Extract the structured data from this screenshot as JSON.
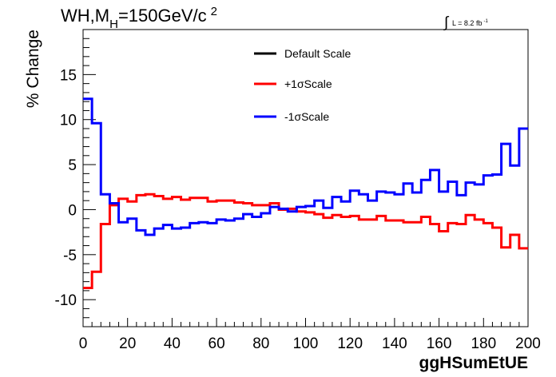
{
  "chart_data": {
    "type": "line",
    "title": {
      "main": "WH,M",
      "sub": "H",
      "rest": "=150GeV/c",
      "sup": "2"
    },
    "lumi": {
      "integral_sign": "∫",
      "text": "L = 8.2 fb",
      "sup": "-1"
    },
    "xlabel": "ggHSumEtUE",
    "ylabel": "% Change",
    "xlim": [
      0,
      200
    ],
    "ylim": [
      -13,
      20
    ],
    "x_ticks": [
      0,
      20,
      40,
      60,
      80,
      100,
      120,
      140,
      160,
      180,
      200
    ],
    "y_ticks": [
      -10,
      -5,
      0,
      5,
      10,
      15
    ],
    "x_tick_labels": [
      "0",
      "20",
      "40",
      "60",
      "80",
      "100",
      "120",
      "140",
      "160",
      "180",
      "200"
    ],
    "y_tick_labels": [
      "-10",
      "-5",
      "0",
      "5",
      "10",
      "15"
    ],
    "bin_edges": [
      0,
      4,
      8,
      12,
      16,
      20,
      24,
      28,
      32,
      36,
      40,
      44,
      48,
      52,
      56,
      60,
      64,
      68,
      72,
      76,
      80,
      84,
      88,
      92,
      96,
      100,
      104,
      108,
      112,
      116,
      120,
      124,
      128,
      132,
      136,
      140,
      144,
      148,
      152,
      156,
      160,
      164,
      168,
      172,
      176,
      180,
      184,
      188,
      192,
      196,
      200
    ],
    "series": [
      {
        "name": "Default Scale",
        "color": "#000000",
        "values": []
      },
      {
        "name": "+1σScale",
        "color": "#ff0000",
        "values": [
          -8.7,
          -6.9,
          -1.6,
          0.5,
          1.2,
          0.9,
          1.6,
          1.7,
          1.5,
          1.2,
          1.4,
          1.1,
          1.3,
          1.3,
          0.9,
          1.0,
          1.0,
          0.8,
          0.7,
          0.5,
          0.5,
          0.7,
          0.0,
          0.1,
          -0.2,
          -0.3,
          -0.5,
          -0.9,
          -0.6,
          -0.8,
          -0.7,
          -1.1,
          -1.1,
          -0.7,
          -1.2,
          -1.2,
          -1.4,
          -1.4,
          -0.8,
          -1.6,
          -2.4,
          -1.5,
          -1.6,
          -0.6,
          -1.1,
          -1.5,
          -2.0,
          -4.2,
          -2.8,
          -4.3
        ]
      },
      {
        "name": "-1σScale",
        "color": "#0000ff",
        "values": [
          12.3,
          9.6,
          1.7,
          0.7,
          -1.4,
          -1.0,
          -2.3,
          -2.8,
          -2.1,
          -1.7,
          -2.1,
          -2.0,
          -1.5,
          -1.4,
          -1.5,
          -1.1,
          -1.2,
          -1.0,
          -0.5,
          -0.8,
          -0.4,
          0.3,
          0.1,
          -0.2,
          0.3,
          0.4,
          1.0,
          0.2,
          1.4,
          0.9,
          2.1,
          1.7,
          1.0,
          2.0,
          1.9,
          1.7,
          2.9,
          1.9,
          3.3,
          4.4,
          2.0,
          3.1,
          1.6,
          3.0,
          2.8,
          3.8,
          3.9,
          7.3,
          4.9,
          9.0
        ]
      }
    ],
    "legend_placement": "top-center",
    "grid": false
  }
}
